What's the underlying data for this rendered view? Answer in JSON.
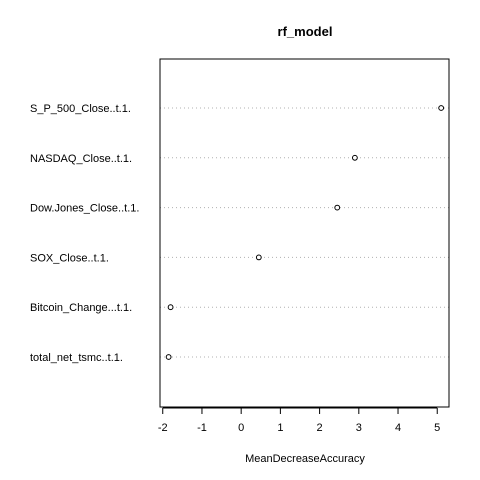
{
  "chart_data": {
    "type": "scatter",
    "title": "rf_model",
    "xlabel": "MeanDecreaseAccuracy",
    "ylabel": "",
    "categories": [
      "S_P_500_Close..t.1.",
      "NASDAQ_Close..t.1.",
      "Dow.Jones_Close..t.1.",
      "SOX_Close..t.1.",
      "Bitcoin_Change...t.1.",
      "total_net_tsmc..t.1."
    ],
    "values": [
      5.1,
      2.9,
      2.45,
      0.45,
      -1.8,
      -1.85
    ],
    "xticks": [
      -2,
      -1,
      0,
      1,
      2,
      3,
      4,
      5
    ],
    "xtick_labels": [
      "-2",
      "-1",
      "0",
      "1",
      "2",
      "3",
      "4",
      "5"
    ],
    "xlim": [
      -2.07,
      5.3
    ],
    "grid": "dotted-horizontal",
    "point_style": "open-circle"
  }
}
